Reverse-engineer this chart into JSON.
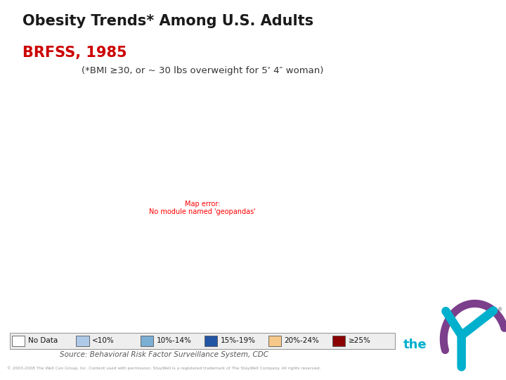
{
  "title_line1": "Obesity Trends* Among U.S. Adults",
  "title_line2": "BRFSS, 1985",
  "subtitle": "(*BMI ≥30, or ~ 30 lbs overweight for 5’ 4″ woman)",
  "header_bg_color": "#a8b800",
  "title_color": "#1a1a1a",
  "year_color": "#cc0000",
  "source_text": "Source: Behavioral Risk Factor Surveillance System, CDC",
  "copyright_text": "© 2003-2008 The Well Can Group, Inc. Content used with permission. StayWell is a registered trademark of The StayWell Company. All rights reserved.",
  "legend_labels": [
    "No Data",
    "<10%",
    "10%-14%",
    "15%-19%",
    "20%-24%",
    "≥25%"
  ],
  "legend_colors": [
    "#ffffff",
    "#aec9e8",
    "#7bafd4",
    "#2255a4",
    "#f5c88a",
    "#8b0000"
  ],
  "state_colors": {
    "Alabama": "#ffffff",
    "Alaska": "#aec9e8",
    "Arizona": "#aec9e8",
    "Arkansas": "#ffffff",
    "California": "#7bafd4",
    "Colorado": "#ffffff",
    "Connecticut": "#ffffff",
    "Delaware": "#ffffff",
    "Florida": "#7bafd4",
    "Georgia": "#2255a4",
    "Hawaii": "#ffffff",
    "Idaho": "#ffffff",
    "Illinois": "#7bafd4",
    "Indiana": "#2255a4",
    "Iowa": "#ffffff",
    "Kansas": "#ffffff",
    "Kentucky": "#2255a4",
    "Louisiana": "#ffffff",
    "Maine": "#ffffff",
    "Maryland": "#ffffff",
    "Massachusetts": "#ffffff",
    "Michigan": "#7bafd4",
    "Minnesota": "#2255a4",
    "Mississippi": "#ffffff",
    "Missouri": "#ffffff",
    "Montana": "#7bafd4",
    "Nebraska": "#ffffff",
    "Nevada": "#aec9e8",
    "New Hampshire": "#ffffff",
    "New Jersey": "#ffffff",
    "New Mexico": "#ffffff",
    "New York": "#ffffff",
    "North Carolina": "#7bafd4",
    "North Dakota": "#2255a4",
    "Ohio": "#2255a4",
    "Oklahoma": "#ffffff",
    "Oregon": "#ffffff",
    "Pennsylvania": "#ffffff",
    "Rhode Island": "#ffffff",
    "South Carolina": "#2255a4",
    "South Dakota": "#ffffff",
    "Tennessee": "#7bafd4",
    "Texas": "#ffffff",
    "Utah": "#aec9e8",
    "Vermont": "#ffffff",
    "Virginia": "#ffffff",
    "Washington": "#ffffff",
    "West Virginia": "#2255a4",
    "Wisconsin": "#7bafd4",
    "Wyoming": "#ffffff",
    "District of Columbia": "#ffffff"
  },
  "border_color": "#222222",
  "border_lw": 0.7
}
